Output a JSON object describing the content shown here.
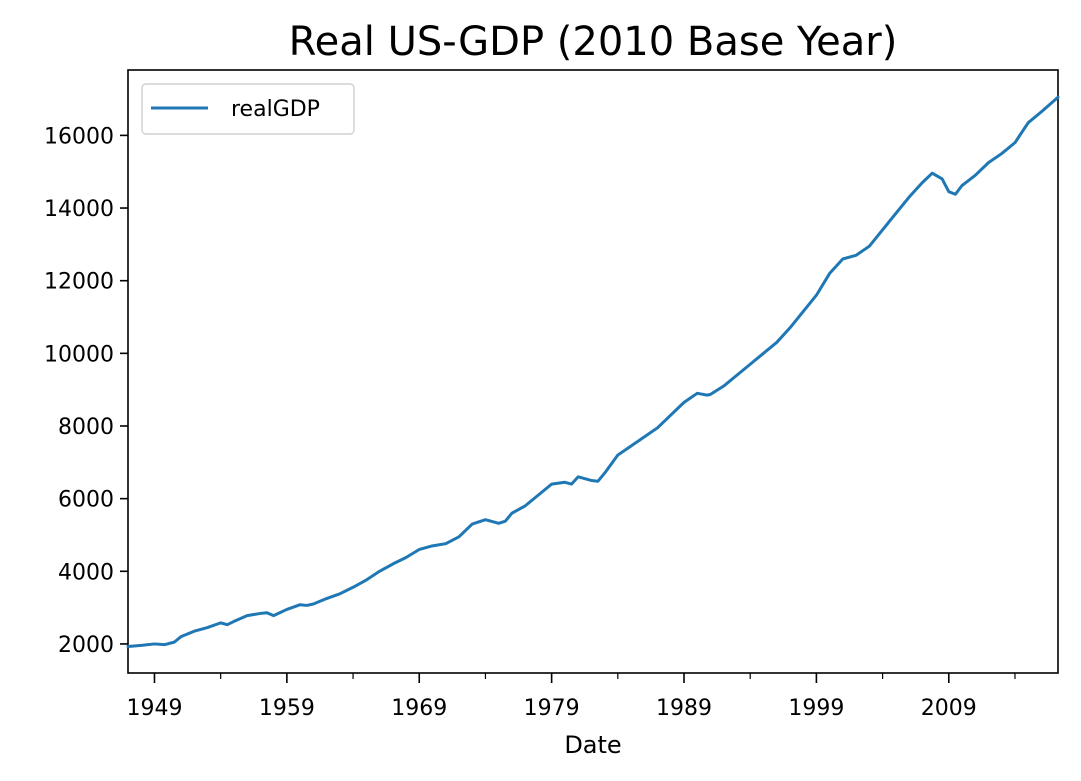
{
  "chart_data": {
    "type": "line",
    "title": "Real US-GDP (2010 Base Year)",
    "xlabel": "Date",
    "ylabel": "",
    "xlim": [
      1947,
      2017.25
    ],
    "ylim": [
      1200,
      17800
    ],
    "x_tick_labels": [
      "1949",
      "1959",
      "1969",
      "1979",
      "1989",
      "1999",
      "2009"
    ],
    "x_major_ticks": [
      1949,
      1959,
      1969,
      1979,
      1989,
      1999,
      2009
    ],
    "x_minor_ticks": [
      1954,
      1964,
      1974,
      1984,
      1994,
      2004,
      2014
    ],
    "y_ticks": [
      2000,
      4000,
      6000,
      8000,
      10000,
      12000,
      14000,
      16000
    ],
    "legend_position": "upper-left",
    "grid": false,
    "series": [
      {
        "name": "realGDP",
        "color": "#1f77b4",
        "points": [
          [
            1947.0,
            1930
          ],
          [
            1948.0,
            1960
          ],
          [
            1949.0,
            2000
          ],
          [
            1949.75,
            1980
          ],
          [
            1950.5,
            2050
          ],
          [
            1951.0,
            2200
          ],
          [
            1952.0,
            2350
          ],
          [
            1953.0,
            2450
          ],
          [
            1954.0,
            2580
          ],
          [
            1954.5,
            2530
          ],
          [
            1955.0,
            2620
          ],
          [
            1956.0,
            2780
          ],
          [
            1957.0,
            2840
          ],
          [
            1957.5,
            2860
          ],
          [
            1958.0,
            2780
          ],
          [
            1959.0,
            2950
          ],
          [
            1960.0,
            3080
          ],
          [
            1960.5,
            3060
          ],
          [
            1961.0,
            3100
          ],
          [
            1962.0,
            3250
          ],
          [
            1963.0,
            3380
          ],
          [
            1964.0,
            3560
          ],
          [
            1965.0,
            3760
          ],
          [
            1966.0,
            4000
          ],
          [
            1967.0,
            4200
          ],
          [
            1968.0,
            4380
          ],
          [
            1969.0,
            4600
          ],
          [
            1970.0,
            4700
          ],
          [
            1971.0,
            4760
          ],
          [
            1972.0,
            4950
          ],
          [
            1973.0,
            5300
          ],
          [
            1974.0,
            5420
          ],
          [
            1975.0,
            5320
          ],
          [
            1975.5,
            5380
          ],
          [
            1976.0,
            5600
          ],
          [
            1977.0,
            5800
          ],
          [
            1978.0,
            6100
          ],
          [
            1979.0,
            6400
          ],
          [
            1980.0,
            6450
          ],
          [
            1980.5,
            6400
          ],
          [
            1981.0,
            6600
          ],
          [
            1982.0,
            6500
          ],
          [
            1982.5,
            6480
          ],
          [
            1983.0,
            6700
          ],
          [
            1984.0,
            7200
          ],
          [
            1985.0,
            7450
          ],
          [
            1986.0,
            7700
          ],
          [
            1987.0,
            7950
          ],
          [
            1988.0,
            8300
          ],
          [
            1989.0,
            8650
          ],
          [
            1990.0,
            8900
          ],
          [
            1990.75,
            8850
          ],
          [
            1991.0,
            8870
          ],
          [
            1992.0,
            9100
          ],
          [
            1993.0,
            9400
          ],
          [
            1994.0,
            9700
          ],
          [
            1995.0,
            10000
          ],
          [
            1996.0,
            10300
          ],
          [
            1997.0,
            10700
          ],
          [
            1998.0,
            11150
          ],
          [
            1999.0,
            11600
          ],
          [
            2000.0,
            12200
          ],
          [
            2001.0,
            12600
          ],
          [
            2002.0,
            12700
          ],
          [
            2003.0,
            12950
          ],
          [
            2004.0,
            13400
          ],
          [
            2005.0,
            13850
          ],
          [
            2006.0,
            14300
          ],
          [
            2007.0,
            14700
          ],
          [
            2007.75,
            14960
          ],
          [
            2008.5,
            14800
          ],
          [
            2009.0,
            14450
          ],
          [
            2009.5,
            14380
          ],
          [
            2010.0,
            14620
          ],
          [
            2011.0,
            14900
          ],
          [
            2012.0,
            15250
          ],
          [
            2013.0,
            15500
          ],
          [
            2014.0,
            15800
          ],
          [
            2015.0,
            16350
          ],
          [
            2016.0,
            16650
          ],
          [
            2017.25,
            17050
          ]
        ]
      }
    ]
  }
}
